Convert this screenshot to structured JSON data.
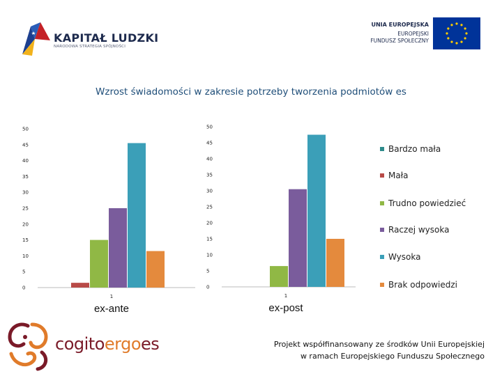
{
  "header": {
    "kapital_title": "KAPITAŁ LUDZKI",
    "kapital_subtitle": "NARODOWA STRATEGIA SPÓJNOŚCI",
    "eu_line1": "UNIA EUROPEJSKA",
    "eu_line2": "EUROPEJSKI",
    "eu_line3": "FUNDUSZ SPOŁECZNY"
  },
  "title": "Wzrost świadomości w zakresie potrzeby tworzenia podmiotów es",
  "colors": {
    "title": "#1f4e79",
    "eu_flag": "#003399",
    "eu_star": "#ffcc00",
    "cogito": "#7a1a28",
    "cogito_accent": "#e07b2a"
  },
  "chart_data": [
    {
      "type": "bar",
      "categories": [
        "1"
      ],
      "category_caption": "ex-ante",
      "ylim": [
        0,
        50
      ],
      "yticks": [
        "0",
        "5",
        "10",
        "15",
        "20",
        "25",
        "30",
        "35",
        "40",
        "45",
        "50"
      ],
      "series": [
        {
          "name": "Bardzo mała",
          "color": "#2e8b8b",
          "values": [
            0
          ]
        },
        {
          "name": "Mała",
          "color": "#b84a47",
          "values": [
            1.5
          ]
        },
        {
          "name": "Trudno powiedzieć",
          "color": "#90b845",
          "values": [
            15
          ]
        },
        {
          "name": "Raczej wysoka",
          "color": "#7a5c9c",
          "values": [
            25
          ]
        },
        {
          "name": "Wysoka",
          "color": "#3b9fb8",
          "values": [
            45.5
          ]
        },
        {
          "name": "Brak odpowiedzi",
          "color": "#e48a3d",
          "values": [
            11.5
          ]
        }
      ],
      "grid": false
    },
    {
      "type": "bar",
      "categories": [
        "1"
      ],
      "category_caption": "ex-post",
      "ylim": [
        0,
        50
      ],
      "yticks": [
        "0",
        "5",
        "10",
        "15",
        "20",
        "25",
        "30",
        "35",
        "40",
        "45",
        "50"
      ],
      "series": [
        {
          "name": "Bardzo mała",
          "color": "#2e8b8b",
          "values": [
            0
          ]
        },
        {
          "name": "Mała",
          "color": "#b84a47",
          "values": [
            0
          ]
        },
        {
          "name": "Trudno powiedzieć",
          "color": "#90b845",
          "values": [
            6.5
          ]
        },
        {
          "name": "Raczej wysoka",
          "color": "#7a5c9c",
          "values": [
            30.5
          ]
        },
        {
          "name": "Wysoka",
          "color": "#3b9fb8",
          "values": [
            47.5
          ]
        },
        {
          "name": "Brak odpowiedzi",
          "color": "#e48a3d",
          "values": [
            15
          ]
        }
      ],
      "grid": false
    }
  ],
  "legend": [
    {
      "label": "Bardzo mała",
      "color": "#2e8b8b"
    },
    {
      "label": "Mała",
      "color": "#b84a47"
    },
    {
      "label": "Trudno powiedzieć",
      "color": "#90b845"
    },
    {
      "label": "Raczej wysoka",
      "color": "#7a5c9c"
    },
    {
      "label": "Wysoka",
      "color": "#3b9fb8"
    },
    {
      "label": "Brak odpowiedzi",
      "color": "#e48a3d"
    }
  ],
  "footer": {
    "cogito_part1": "cogito",
    "cogito_part2": "ergo",
    "cogito_part3": "es",
    "line1": "Projekt  współfinansowany ze środków Unii Europejskiej",
    "line2": "w ramach Europejskiego Funduszu Społecznego"
  }
}
